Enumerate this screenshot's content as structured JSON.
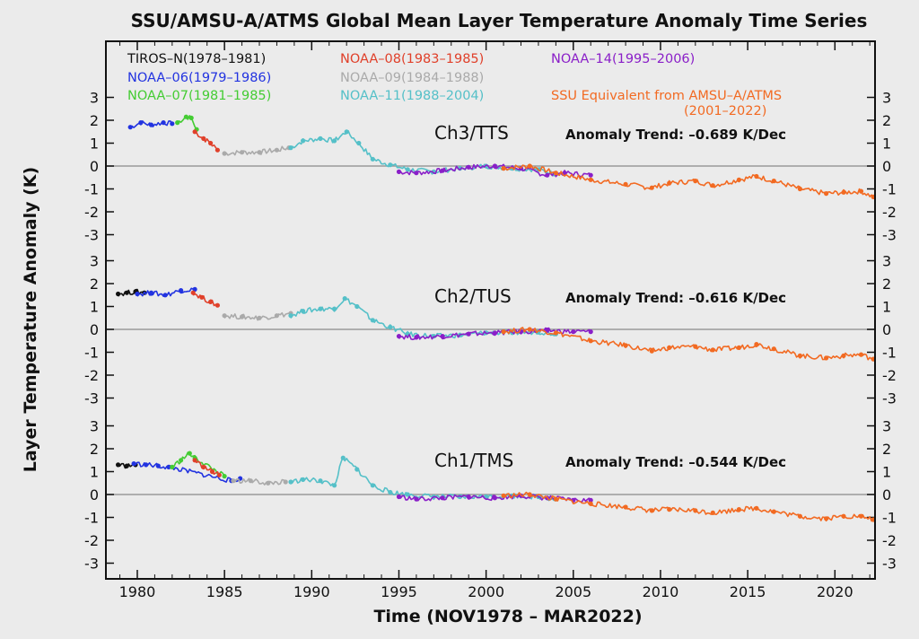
{
  "title": "SSU/AMSU-A/ATMS Global Mean Layer Temperature Anomaly Time Series",
  "colors": {
    "background": "#ebebeb",
    "tiros_n": "#111111",
    "noaa06": "#2233e0",
    "noaa07": "#44cc33",
    "noaa08": "#e0402a",
    "noaa09": "#aaaaaa",
    "noaa11": "#55c0c8",
    "noaa14": "#8a1fc8",
    "ssu_equiv": "#f26a22",
    "zero_line": "#999999"
  },
  "chart_data": {
    "type": "scatter",
    "title": "SSU/AMSU-A/ATMS Global Mean Layer Temperature Anomaly Time Series",
    "xlabel": "Time (NOV1978 –  MAR2022)",
    "ylabel": "Layer Temperature Anomaly (K)",
    "xlim": [
      1978.2,
      2022.3
    ],
    "x_ticks": [
      1980,
      1985,
      1990,
      1995,
      2000,
      2005,
      2010,
      2015,
      2020
    ],
    "y_ticks": [
      -3,
      -2,
      -1,
      0,
      1,
      2,
      3
    ],
    "legend": [
      {
        "label": "TIROS–N(1978–1981)",
        "color_key": "tiros_n",
        "position": "top-left"
      },
      {
        "label": "NOAA–06(1979–1986)",
        "color_key": "noaa06",
        "position": "top-left"
      },
      {
        "label": "NOAA–07(1981–1985)",
        "color_key": "noaa07",
        "position": "top-left"
      },
      {
        "label": "NOAA–08(1983–1985)",
        "color_key": "noaa08",
        "position": "top-center"
      },
      {
        "label": "NOAA–09(1984–1988)",
        "color_key": "noaa09",
        "position": "top-center"
      },
      {
        "label": "NOAA–11(1988–2004)",
        "color_key": "noaa11",
        "position": "top-center"
      },
      {
        "label": "NOAA–14(1995–2006)",
        "color_key": "noaa14",
        "position": "top-right"
      },
      {
        "label": "SSU Equivalent from AMSU–A/ATMS",
        "label2": "(2001–2022)",
        "color_key": "ssu_equiv",
        "position": "top-right"
      }
    ],
    "panels": [
      {
        "name": "Ch3/TTS",
        "label": "Ch3/TTS",
        "trend_text": "Anomaly Trend: –0.689 K/Dec",
        "ylim": [
          -3.3,
          3.3
        ],
        "series": [
          {
            "name": "NOAA-06",
            "color_key": "noaa06",
            "points": [
              [
                1979.6,
                1.7
              ],
              [
                1980.2,
                1.9
              ],
              [
                1980.8,
                1.8
              ],
              [
                1981.5,
                1.9
              ],
              [
                1982.0,
                1.85
              ]
            ]
          },
          {
            "name": "NOAA-07",
            "color_key": "noaa07",
            "points": [
              [
                1982.3,
                1.9
              ],
              [
                1982.8,
                2.15
              ],
              [
                1983.1,
                2.1
              ],
              [
                1983.4,
                1.6
              ]
            ]
          },
          {
            "name": "NOAA-08",
            "color_key": "noaa08",
            "points": [
              [
                1983.3,
                1.5
              ],
              [
                1983.8,
                1.2
              ],
              [
                1984.2,
                1.0
              ],
              [
                1984.6,
                0.7
              ]
            ]
          },
          {
            "name": "NOAA-09",
            "color_key": "noaa09",
            "points": [
              [
                1985.0,
                0.55
              ],
              [
                1986.0,
                0.6
              ],
              [
                1987.0,
                0.6
              ],
              [
                1988.0,
                0.7
              ],
              [
                1988.7,
                0.8
              ]
            ]
          },
          {
            "name": "NOAA-11",
            "color_key": "noaa11",
            "points": [
              [
                1988.8,
                0.8
              ],
              [
                1989.5,
                1.1
              ],
              [
                1990.5,
                1.2
              ],
              [
                1991.3,
                1.1
              ],
              [
                1992.0,
                1.5
              ],
              [
                1992.7,
                1.0
              ],
              [
                1993.5,
                0.3
              ],
              [
                1994.5,
                0.05
              ],
              [
                1995.5,
                -0.15
              ],
              [
                1997.0,
                -0.25
              ],
              [
                1998.5,
                -0.1
              ],
              [
                2000.0,
                0.0
              ],
              [
                2001.5,
                -0.1
              ],
              [
                2003.0,
                -0.15
              ],
              [
                2004.0,
                -0.35
              ]
            ]
          },
          {
            "name": "NOAA-14",
            "color_key": "noaa14",
            "points": [
              [
                1995.0,
                -0.25
              ],
              [
                1996.0,
                -0.3
              ],
              [
                1997.5,
                -0.2
              ],
              [
                1999.0,
                -0.05
              ],
              [
                2000.5,
                0.0
              ],
              [
                2002.0,
                -0.1
              ],
              [
                2003.5,
                -0.4
              ],
              [
                2004.5,
                -0.3
              ],
              [
                2006.0,
                -0.4
              ]
            ]
          },
          {
            "name": "SSU Equivalent",
            "color_key": "ssu_equiv",
            "points": [
              [
                2001.0,
                -0.1
              ],
              [
                2002.5,
                0.0
              ],
              [
                2004.0,
                -0.3
              ],
              [
                2006.0,
                -0.6
              ],
              [
                2008.0,
                -0.8
              ],
              [
                2009.5,
                -0.95
              ],
              [
                2010.5,
                -0.75
              ],
              [
                2012.0,
                -0.65
              ],
              [
                2013.0,
                -0.85
              ],
              [
                2014.5,
                -0.6
              ],
              [
                2015.5,
                -0.45
              ],
              [
                2016.5,
                -0.65
              ],
              [
                2018.0,
                -1.0
              ],
              [
                2019.5,
                -1.2
              ],
              [
                2020.5,
                -1.15
              ],
              [
                2021.5,
                -1.1
              ],
              [
                2022.2,
                -1.35
              ]
            ]
          }
        ]
      },
      {
        "name": "Ch2/TUS",
        "label": "Ch2/TUS",
        "trend_text": "Anomaly Trend: –0.616 K/Dec",
        "ylim": [
          -3.3,
          3.3
        ],
        "series": [
          {
            "name": "TIROS-N",
            "color_key": "tiros_n",
            "points": [
              [
                1978.9,
                1.55
              ],
              [
                1979.4,
                1.6
              ],
              [
                1979.9,
                1.65
              ],
              [
                1980.4,
                1.6
              ]
            ]
          },
          {
            "name": "NOAA-06",
            "color_key": "noaa06",
            "points": [
              [
                1980.0,
                1.55
              ],
              [
                1980.8,
                1.6
              ],
              [
                1981.6,
                1.5
              ],
              [
                1982.5,
                1.7
              ],
              [
                1983.3,
                1.75
              ]
            ]
          },
          {
            "name": "NOAA-08",
            "color_key": "noaa08",
            "points": [
              [
                1983.2,
                1.6
              ],
              [
                1983.7,
                1.4
              ],
              [
                1984.2,
                1.2
              ],
              [
                1984.6,
                1.05
              ]
            ]
          },
          {
            "name": "NOAA-09",
            "color_key": "noaa09",
            "points": [
              [
                1985.0,
                0.6
              ],
              [
                1986.0,
                0.55
              ],
              [
                1987.0,
                0.5
              ],
              [
                1988.0,
                0.6
              ],
              [
                1988.8,
                0.7
              ]
            ]
          },
          {
            "name": "NOAA-11",
            "color_key": "noaa11",
            "points": [
              [
                1988.8,
                0.6
              ],
              [
                1989.5,
                0.8
              ],
              [
                1990.5,
                0.9
              ],
              [
                1991.3,
                0.9
              ],
              [
                1991.9,
                1.35
              ],
              [
                1992.6,
                1.0
              ],
              [
                1993.5,
                0.4
              ],
              [
                1994.5,
                0.1
              ],
              [
                1995.5,
                -0.2
              ],
              [
                1997.0,
                -0.3
              ],
              [
                1998.5,
                -0.25
              ],
              [
                2000.0,
                -0.15
              ],
              [
                2001.5,
                -0.15
              ],
              [
                2003.0,
                -0.1
              ],
              [
                2004.0,
                -0.2
              ]
            ]
          },
          {
            "name": "NOAA-14",
            "color_key": "noaa14",
            "points": [
              [
                1995.0,
                -0.3
              ],
              [
                1996.0,
                -0.35
              ],
              [
                1997.5,
                -0.3
              ],
              [
                1999.0,
                -0.2
              ],
              [
                2000.5,
                -0.15
              ],
              [
                2002.0,
                -0.1
              ],
              [
                2003.5,
                -0.05
              ],
              [
                2005.0,
                -0.1
              ],
              [
                2006.0,
                -0.1
              ]
            ]
          },
          {
            "name": "SSU Equivalent",
            "color_key": "ssu_equiv",
            "points": [
              [
                2001.0,
                -0.1
              ],
              [
                2002.5,
                0.0
              ],
              [
                2004.0,
                -0.15
              ],
              [
                2006.0,
                -0.5
              ],
              [
                2008.0,
                -0.7
              ],
              [
                2009.5,
                -0.95
              ],
              [
                2010.5,
                -0.8
              ],
              [
                2012.0,
                -0.75
              ],
              [
                2013.0,
                -0.9
              ],
              [
                2014.5,
                -0.8
              ],
              [
                2015.5,
                -0.65
              ],
              [
                2016.5,
                -0.85
              ],
              [
                2018.0,
                -1.15
              ],
              [
                2019.5,
                -1.25
              ],
              [
                2020.5,
                -1.15
              ],
              [
                2021.5,
                -1.1
              ],
              [
                2022.2,
                -1.3
              ]
            ]
          }
        ]
      },
      {
        "name": "Ch1/TMS",
        "label": "Ch1/TMS",
        "trend_text": "Anomaly Trend: –0.544 K/Dec",
        "ylim": [
          -3.3,
          3.3
        ],
        "series": [
          {
            "name": "TIROS-N",
            "color_key": "tiros_n",
            "points": [
              [
                1978.9,
                1.3
              ],
              [
                1979.4,
                1.25
              ],
              [
                1979.9,
                1.3
              ]
            ]
          },
          {
            "name": "NOAA-06",
            "color_key": "noaa06",
            "points": [
              [
                1979.8,
                1.35
              ],
              [
                1980.5,
                1.3
              ],
              [
                1981.2,
                1.25
              ],
              [
                1981.8,
                1.2
              ],
              [
                1985.4,
                0.6
              ],
              [
                1985.9,
                0.7
              ]
            ]
          },
          {
            "name": "NOAA-07",
            "color_key": "noaa07",
            "points": [
              [
                1982.0,
                1.2
              ],
              [
                1982.5,
                1.5
              ],
              [
                1983.0,
                1.8
              ],
              [
                1983.3,
                1.6
              ],
              [
                1985.0,
                0.8
              ]
            ]
          },
          {
            "name": "NOAA-08",
            "color_key": "noaa08",
            "points": [
              [
                1983.3,
                1.5
              ],
              [
                1983.8,
                1.2
              ],
              [
                1984.3,
                1.0
              ],
              [
                1984.7,
                0.85
              ]
            ]
          },
          {
            "name": "NOAA-09",
            "color_key": "noaa09",
            "points": [
              [
                1985.5,
                0.6
              ],
              [
                1986.5,
                0.6
              ],
              [
                1987.5,
                0.5
              ],
              [
                1988.5,
                0.55
              ]
            ]
          },
          {
            "name": "NOAA-11",
            "color_key": "noaa11",
            "points": [
              [
                1988.8,
                0.55
              ],
              [
                1989.5,
                0.65
              ],
              [
                1990.5,
                0.6
              ],
              [
                1991.3,
                0.4
              ],
              [
                1991.8,
                1.6
              ],
              [
                1992.6,
                1.1
              ],
              [
                1993.5,
                0.4
              ],
              [
                1994.5,
                0.1
              ],
              [
                1995.5,
                0.0
              ],
              [
                1997.0,
                -0.1
              ],
              [
                1998.5,
                -0.1
              ],
              [
                2000.0,
                -0.1
              ],
              [
                2001.5,
                -0.05
              ],
              [
                2003.0,
                -0.1
              ],
              [
                2004.0,
                -0.2
              ]
            ]
          },
          {
            "name": "NOAA-14",
            "color_key": "noaa14",
            "points": [
              [
                1995.0,
                -0.1
              ],
              [
                1996.0,
                -0.2
              ],
              [
                1997.5,
                -0.15
              ],
              [
                1999.0,
                -0.1
              ],
              [
                2000.5,
                -0.15
              ],
              [
                2002.0,
                -0.05
              ],
              [
                2003.5,
                -0.15
              ],
              [
                2005.0,
                -0.25
              ],
              [
                2006.0,
                -0.25
              ]
            ]
          },
          {
            "name": "SSU Equivalent",
            "color_key": "ssu_equiv",
            "points": [
              [
                2001.0,
                -0.05
              ],
              [
                2002.5,
                0.0
              ],
              [
                2004.0,
                -0.2
              ],
              [
                2006.0,
                -0.4
              ],
              [
                2008.0,
                -0.55
              ],
              [
                2009.5,
                -0.7
              ],
              [
                2010.5,
                -0.65
              ],
              [
                2012.0,
                -0.7
              ],
              [
                2013.0,
                -0.8
              ],
              [
                2014.5,
                -0.65
              ],
              [
                2015.5,
                -0.6
              ],
              [
                2016.5,
                -0.75
              ],
              [
                2018.0,
                -0.95
              ],
              [
                2019.5,
                -1.05
              ],
              [
                2020.5,
                -0.95
              ],
              [
                2021.5,
                -0.95
              ],
              [
                2022.2,
                -1.1
              ]
            ]
          }
        ]
      }
    ]
  }
}
